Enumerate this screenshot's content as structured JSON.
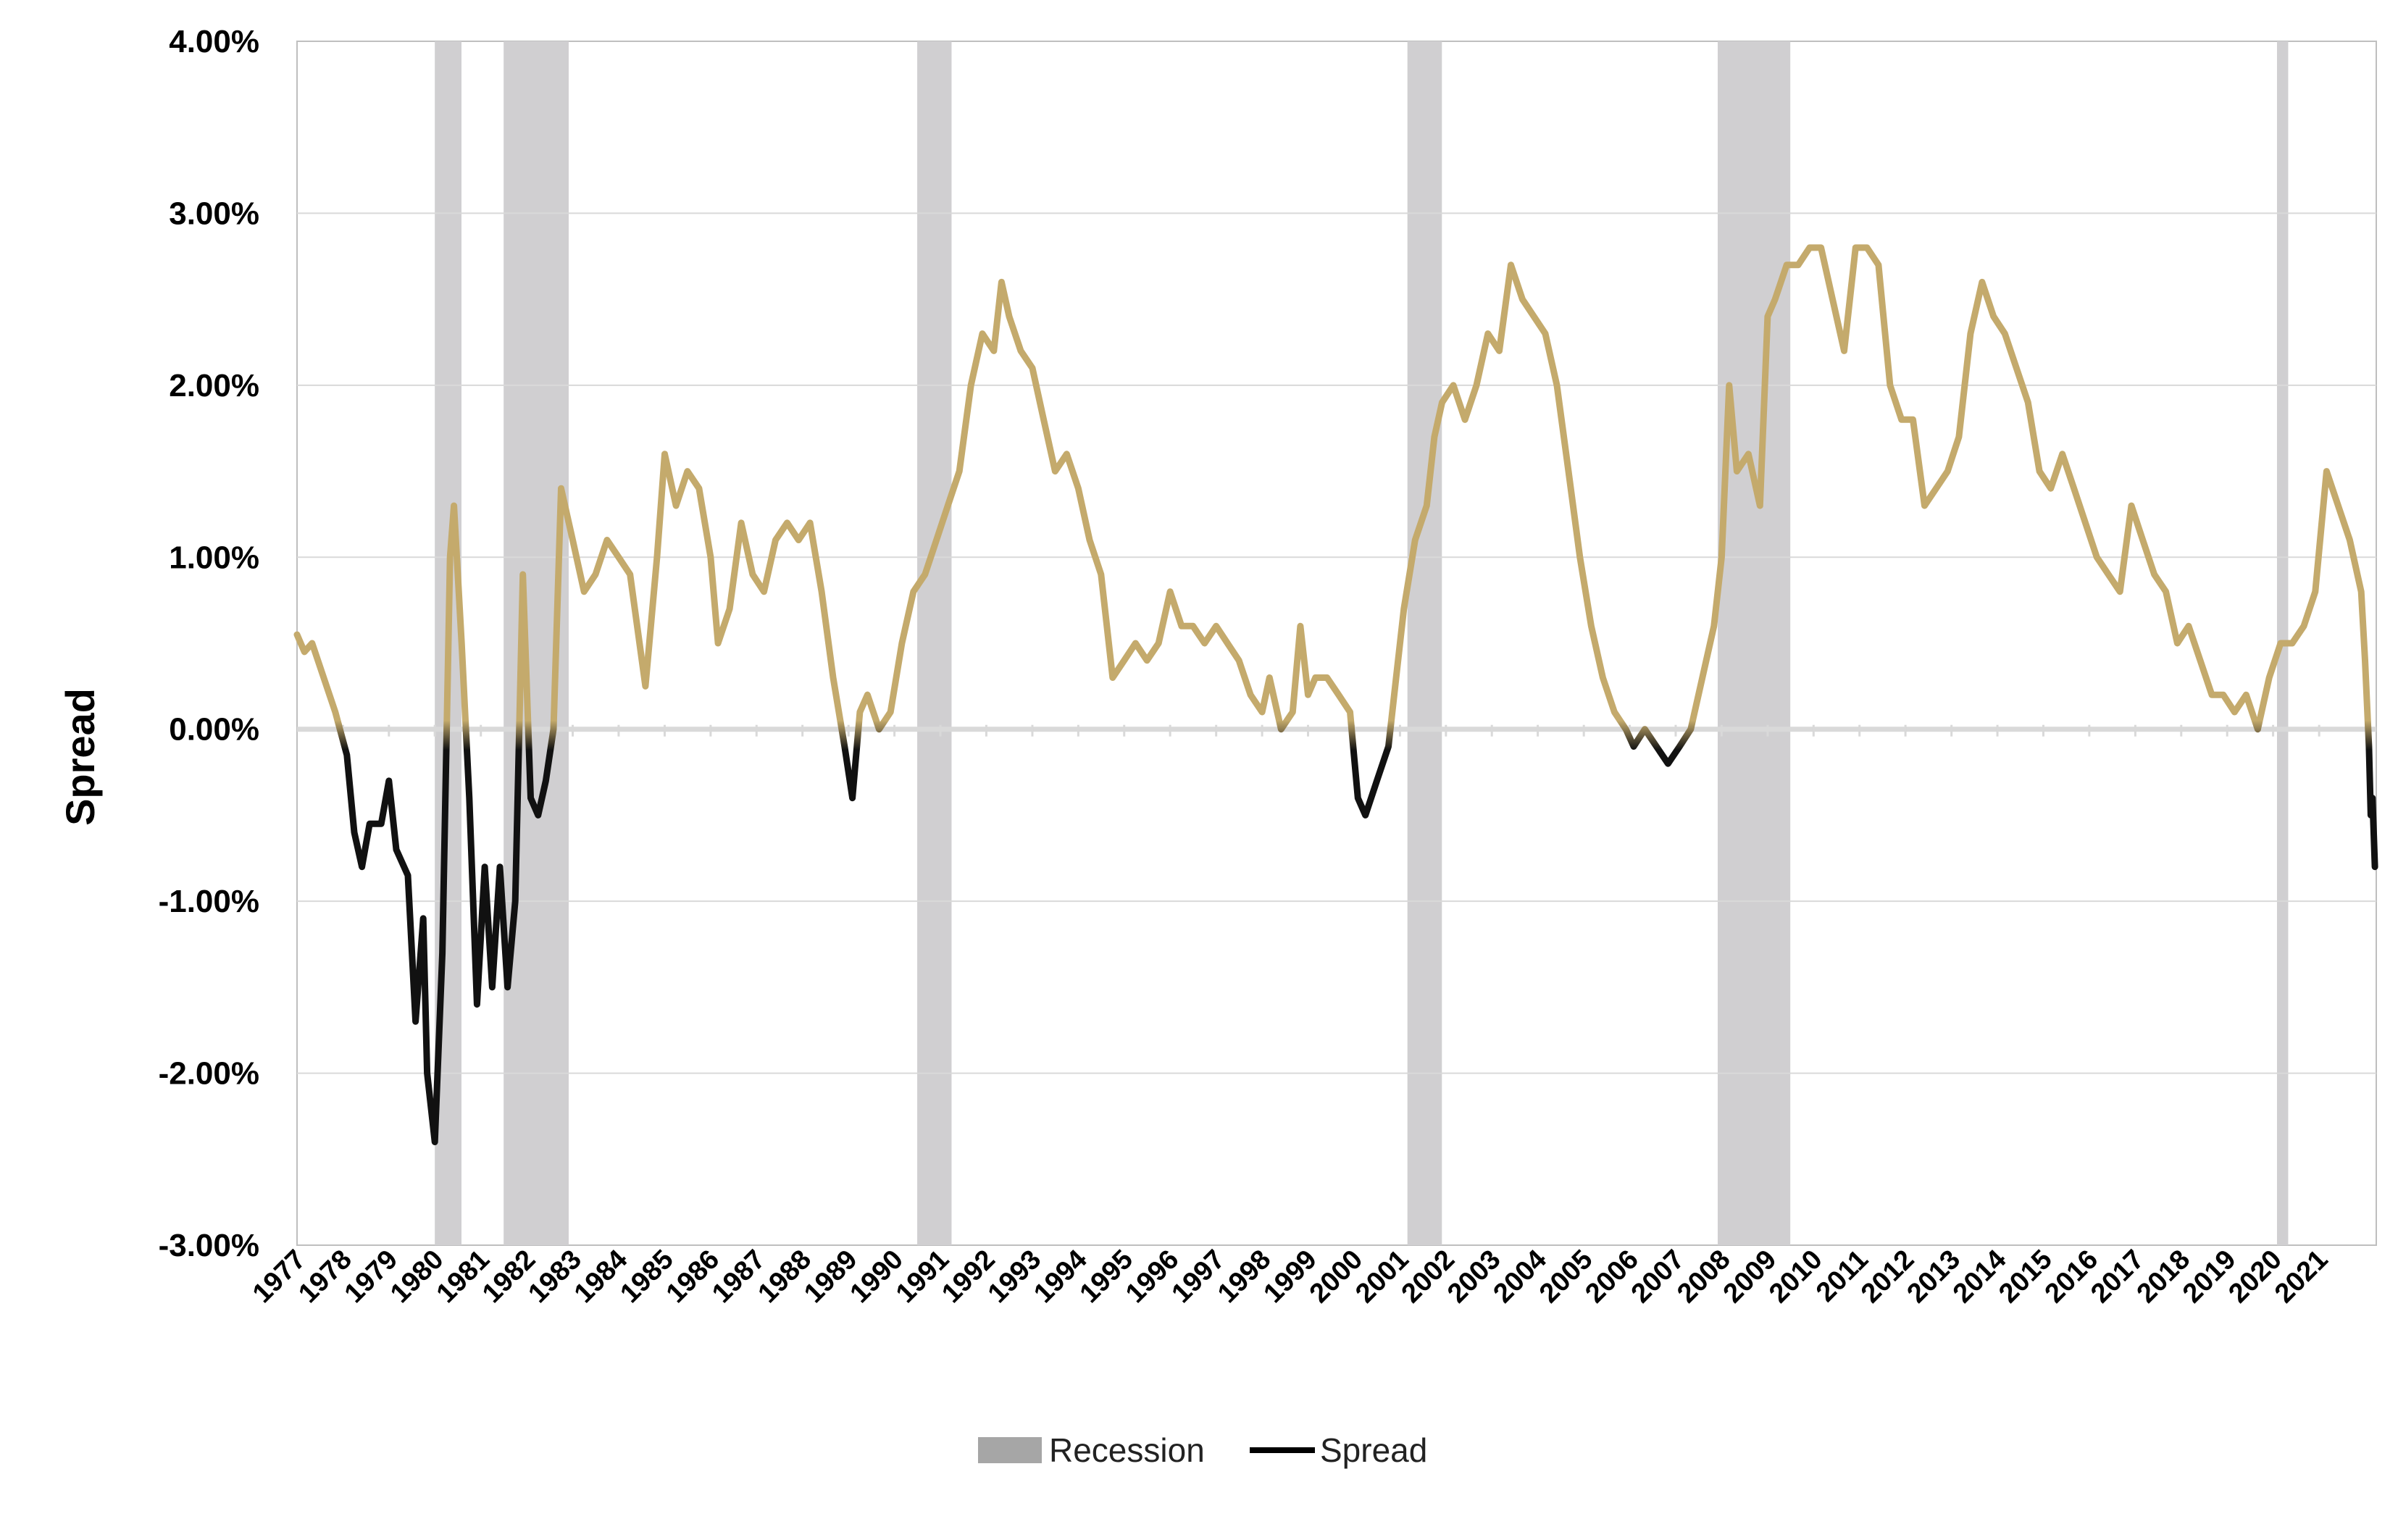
{
  "chart_data": {
    "type": "line",
    "title": "",
    "xlabel": "",
    "ylabel": "Spread",
    "ylim": [
      -0.03,
      0.04
    ],
    "xlim": [
      "1977-01-01",
      "2022-03-31"
    ],
    "y_ticks": [
      "4.00%",
      "3.00%",
      "2.00%",
      "1.00%",
      "0.00%",
      "-1.00%",
      "-2.00%",
      "-3.00%"
    ],
    "y_tick_values": [
      0.04,
      0.03,
      0.02,
      0.01,
      0.0,
      -0.01,
      -0.02,
      -0.03
    ],
    "x_ticks": [
      "1977",
      "1978",
      "1979",
      "1980",
      "1981",
      "1982",
      "1983",
      "1984",
      "1985",
      "1986",
      "1987",
      "1988",
      "1989",
      "1990",
      "1991",
      "1992",
      "1993",
      "1994",
      "1995",
      "1996",
      "1997",
      "1998",
      "1999",
      "2000",
      "2001",
      "2002",
      "2003",
      "2004",
      "2005",
      "2006",
      "2007",
      "2008",
      "2009",
      "2010",
      "2011",
      "2012",
      "2013",
      "2014",
      "2015",
      "2016",
      "2017",
      "2018",
      "2019",
      "2020",
      "2021"
    ],
    "grid": "horizontal",
    "legend_position": "bottom-center",
    "colors": {
      "positive": "#c4aa6c",
      "negative": "#111111",
      "recession": "#d0cfd1",
      "recession_legend": "#a6a6a6",
      "zero_line": "#d9d9d9",
      "grid": "#d9d9d9"
    },
    "series": [
      {
        "name": "Recession",
        "kind": "shaded-band",
        "periods": [
          [
            "1980-01-01",
            "1980-07-31"
          ],
          [
            "1981-07-01",
            "1982-11-30"
          ],
          [
            "1990-07-01",
            "1991-03-31"
          ],
          [
            "2001-03-01",
            "2001-11-30"
          ],
          [
            "2007-12-01",
            "2009-06-30"
          ],
          [
            "2020-02-01",
            "2020-04-30"
          ]
        ]
      },
      {
        "name": "Spread",
        "kind": "line",
        "points": [
          [
            "1977-01-01",
            0.0055
          ],
          [
            "1977-03-01",
            0.0045
          ],
          [
            "1977-05-01",
            0.005
          ],
          [
            "1977-08-01",
            0.003
          ],
          [
            "1977-11-01",
            0.001
          ],
          [
            "1978-02-01",
            -0.0015
          ],
          [
            "1978-04-01",
            -0.006
          ],
          [
            "1978-06-01",
            -0.008
          ],
          [
            "1978-08-01",
            -0.0055
          ],
          [
            "1978-11-01",
            -0.0055
          ],
          [
            "1979-01-01",
            -0.003
          ],
          [
            "1979-03-01",
            -0.007
          ],
          [
            "1979-06-01",
            -0.0085
          ],
          [
            "1979-08-01",
            -0.017
          ],
          [
            "1979-10-01",
            -0.011
          ],
          [
            "1979-11-01",
            -0.02
          ],
          [
            "1980-01-01",
            -0.024
          ],
          [
            "1980-03-01",
            -0.013
          ],
          [
            "1980-05-01",
            0.01
          ],
          [
            "1980-06-01",
            0.013
          ],
          [
            "1980-08-01",
            0.005
          ],
          [
            "1980-10-01",
            -0.004
          ],
          [
            "1980-12-01",
            -0.016
          ],
          [
            "1981-02-01",
            -0.008
          ],
          [
            "1981-04-01",
            -0.015
          ],
          [
            "1981-06-01",
            -0.008
          ],
          [
            "1981-08-01",
            -0.015
          ],
          [
            "1981-10-01",
            -0.01
          ],
          [
            "1981-12-01",
            0.009
          ],
          [
            "1982-02-01",
            -0.004
          ],
          [
            "1982-04-01",
            -0.005
          ],
          [
            "1982-06-01",
            -0.003
          ],
          [
            "1982-08-01",
            0.0
          ],
          [
            "1982-10-01",
            0.014
          ],
          [
            "1983-01-01",
            0.011
          ],
          [
            "1983-04-01",
            0.008
          ],
          [
            "1983-07-01",
            0.009
          ],
          [
            "1983-10-01",
            0.011
          ],
          [
            "1984-01-01",
            0.01
          ],
          [
            "1984-04-01",
            0.009
          ],
          [
            "1984-08-01",
            0.0025
          ],
          [
            "1984-11-01",
            0.01
          ],
          [
            "1985-01-01",
            0.016
          ],
          [
            "1985-04-01",
            0.013
          ],
          [
            "1985-07-01",
            0.015
          ],
          [
            "1985-10-01",
            0.014
          ],
          [
            "1986-01-01",
            0.01
          ],
          [
            "1986-03-01",
            0.005
          ],
          [
            "1986-06-01",
            0.007
          ],
          [
            "1986-09-01",
            0.012
          ],
          [
            "1986-12-01",
            0.009
          ],
          [
            "1987-03-01",
            0.008
          ],
          [
            "1987-06-01",
            0.011
          ],
          [
            "1987-09-01",
            0.012
          ],
          [
            "1987-12-01",
            0.011
          ],
          [
            "1988-03-01",
            0.012
          ],
          [
            "1988-06-01",
            0.008
          ],
          [
            "1988-09-01",
            0.003
          ],
          [
            "1988-12-01",
            -0.001
          ],
          [
            "1989-02-01",
            -0.004
          ],
          [
            "1989-04-01",
            0.001
          ],
          [
            "1989-06-01",
            0.002
          ],
          [
            "1989-09-01",
            0.0
          ],
          [
            "1989-12-01",
            0.001
          ],
          [
            "1990-03-01",
            0.005
          ],
          [
            "1990-06-01",
            0.008
          ],
          [
            "1990-09-01",
            0.009
          ],
          [
            "1990-12-01",
            0.011
          ],
          [
            "1991-03-01",
            0.013
          ],
          [
            "1991-06-01",
            0.015
          ],
          [
            "1991-09-01",
            0.02
          ],
          [
            "1991-12-01",
            0.023
          ],
          [
            "1992-03-01",
            0.022
          ],
          [
            "1992-05-01",
            0.026
          ],
          [
            "1992-07-01",
            0.024
          ],
          [
            "1992-10-01",
            0.022
          ],
          [
            "1993-01-01",
            0.021
          ],
          [
            "1993-04-01",
            0.018
          ],
          [
            "1993-07-01",
            0.015
          ],
          [
            "1993-10-01",
            0.016
          ],
          [
            "1994-01-01",
            0.014
          ],
          [
            "1994-04-01",
            0.011
          ],
          [
            "1994-07-01",
            0.009
          ],
          [
            "1994-10-01",
            0.003
          ],
          [
            "1995-01-01",
            0.004
          ],
          [
            "1995-04-01",
            0.005
          ],
          [
            "1995-07-01",
            0.004
          ],
          [
            "1995-10-01",
            0.005
          ],
          [
            "1996-01-01",
            0.008
          ],
          [
            "1996-04-01",
            0.006
          ],
          [
            "1996-07-01",
            0.006
          ],
          [
            "1996-10-01",
            0.005
          ],
          [
            "1997-01-01",
            0.006
          ],
          [
            "1997-04-01",
            0.005
          ],
          [
            "1997-07-01",
            0.004
          ],
          [
            "1997-10-01",
            0.002
          ],
          [
            "1998-01-01",
            0.001
          ],
          [
            "1998-03-01",
            0.003
          ],
          [
            "1998-06-01",
            0.0
          ],
          [
            "1998-09-01",
            0.001
          ],
          [
            "1998-11-01",
            0.006
          ],
          [
            "1999-01-01",
            0.002
          ],
          [
            "1999-03-01",
            0.003
          ],
          [
            "1999-06-01",
            0.003
          ],
          [
            "1999-09-01",
            0.002
          ],
          [
            "1999-12-01",
            0.001
          ],
          [
            "2000-02-01",
            -0.004
          ],
          [
            "2000-04-01",
            -0.005
          ],
          [
            "2000-07-01",
            -0.003
          ],
          [
            "2000-10-01",
            -0.001
          ],
          [
            "2000-12-01",
            0.003
          ],
          [
            "2001-02-01",
            0.007
          ],
          [
            "2001-05-01",
            0.011
          ],
          [
            "2001-08-01",
            0.013
          ],
          [
            "2001-10-01",
            0.017
          ],
          [
            "2001-12-01",
            0.019
          ],
          [
            "2002-03-01",
            0.02
          ],
          [
            "2002-06-01",
            0.018
          ],
          [
            "2002-09-01",
            0.02
          ],
          [
            "2002-12-01",
            0.023
          ],
          [
            "2003-03-01",
            0.022
          ],
          [
            "2003-06-01",
            0.027
          ],
          [
            "2003-09-01",
            0.025
          ],
          [
            "2003-12-01",
            0.024
          ],
          [
            "2004-03-01",
            0.023
          ],
          [
            "2004-06-01",
            0.02
          ],
          [
            "2004-09-01",
            0.015
          ],
          [
            "2004-12-01",
            0.01
          ],
          [
            "2005-03-01",
            0.006
          ],
          [
            "2005-06-01",
            0.003
          ],
          [
            "2005-09-01",
            0.001
          ],
          [
            "2005-12-01",
            0.0
          ],
          [
            "2006-02-01",
            -0.001
          ],
          [
            "2006-05-01",
            0.0
          ],
          [
            "2006-08-01",
            -0.001
          ],
          [
            "2006-11-01",
            -0.002
          ],
          [
            "2007-02-01",
            -0.001
          ],
          [
            "2007-05-01",
            0.0
          ],
          [
            "2007-08-01",
            0.003
          ],
          [
            "2007-11-01",
            0.006
          ],
          [
            "2008-01-01",
            0.01
          ],
          [
            "2008-03-01",
            0.02
          ],
          [
            "2008-05-01",
            0.015
          ],
          [
            "2008-08-01",
            0.016
          ],
          [
            "2008-11-01",
            0.013
          ],
          [
            "2009-01-01",
            0.024
          ],
          [
            "2009-03-01",
            0.025
          ],
          [
            "2009-06-01",
            0.027
          ],
          [
            "2009-09-01",
            0.027
          ],
          [
            "2009-12-01",
            0.028
          ],
          [
            "2010-03-01",
            0.028
          ],
          [
            "2010-06-01",
            0.025
          ],
          [
            "2010-09-01",
            0.022
          ],
          [
            "2010-12-01",
            0.028
          ],
          [
            "2011-03-01",
            0.028
          ],
          [
            "2011-06-01",
            0.027
          ],
          [
            "2011-09-01",
            0.02
          ],
          [
            "2011-12-01",
            0.018
          ],
          [
            "2012-03-01",
            0.018
          ],
          [
            "2012-06-01",
            0.013
          ],
          [
            "2012-09-01",
            0.014
          ],
          [
            "2012-12-01",
            0.015
          ],
          [
            "2013-03-01",
            0.017
          ],
          [
            "2013-06-01",
            0.023
          ],
          [
            "2013-09-01",
            0.026
          ],
          [
            "2013-12-01",
            0.024
          ],
          [
            "2014-03-01",
            0.023
          ],
          [
            "2014-06-01",
            0.021
          ],
          [
            "2014-09-01",
            0.019
          ],
          [
            "2014-12-01",
            0.015
          ],
          [
            "2015-03-01",
            0.014
          ],
          [
            "2015-06-01",
            0.016
          ],
          [
            "2015-09-01",
            0.014
          ],
          [
            "2015-12-01",
            0.012
          ],
          [
            "2016-03-01",
            0.01
          ],
          [
            "2016-06-01",
            0.009
          ],
          [
            "2016-09-01",
            0.008
          ],
          [
            "2016-12-01",
            0.013
          ],
          [
            "2017-03-01",
            0.011
          ],
          [
            "2017-06-01",
            0.009
          ],
          [
            "2017-09-01",
            0.008
          ],
          [
            "2017-12-01",
            0.005
          ],
          [
            "2018-03-01",
            0.006
          ],
          [
            "2018-06-01",
            0.004
          ],
          [
            "2018-09-01",
            0.002
          ],
          [
            "2018-12-01",
            0.002
          ],
          [
            "2019-03-01",
            0.001
          ],
          [
            "2019-06-01",
            0.002
          ],
          [
            "2019-09-01",
            0.0
          ],
          [
            "2019-12-01",
            0.003
          ],
          [
            "2020-03-01",
            0.005
          ],
          [
            "2020-06-01",
            0.005
          ],
          [
            "2020-09-01",
            0.006
          ],
          [
            "2020-12-01",
            0.008
          ],
          [
            "2021-03-01",
            0.015
          ],
          [
            "2021-06-01",
            0.013
          ],
          [
            "2021-09-01",
            0.011
          ],
          [
            "2021-12-01",
            0.008
          ],
          [
            "2022-01-01",
            0.004
          ],
          [
            "2022-02-01",
            -0.001
          ],
          [
            "2022-02-15",
            -0.005
          ],
          [
            "2022-03-01",
            -0.004
          ],
          [
            "2022-03-20",
            -0.008
          ]
        ]
      }
    ]
  },
  "legend": {
    "items": [
      {
        "label": "Recession",
        "color": "#a6a6a6",
        "kind": "swatch"
      },
      {
        "label": "Spread",
        "color": "#000000",
        "kind": "line"
      }
    ]
  }
}
